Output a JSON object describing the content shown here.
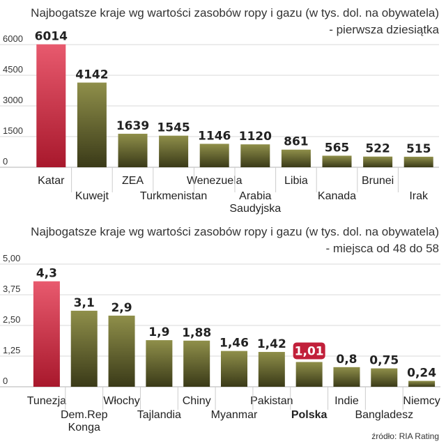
{
  "colors": {
    "bar_top": "#8f8f4a",
    "bar_bottom": "#3a3a18",
    "highlight_top": "#e85a6e",
    "highlight_bottom": "#a8182c",
    "badge": "#c1203a"
  },
  "chart_data": [
    {
      "type": "bar",
      "title": "Najbogatsze kraje wg wartości zasobów ropy i gazu (w tys. dol. na obywatela)",
      "subtitle": "- pierwsza dziesiątka",
      "categories": [
        "Katar",
        "Kuwejt",
        "ZEA",
        "Turkmenistan",
        "Wenezuela",
        "Arabia Saudyjska",
        "Libia",
        "Kanada",
        "Brunei",
        "Irak"
      ],
      "category_lines": [
        [
          "Katar"
        ],
        [
          "Kuwejt"
        ],
        [
          "ZEA"
        ],
        [
          "Turkmenistan"
        ],
        [
          "Wenezuela"
        ],
        [
          "Arabia",
          "Saudyjska"
        ],
        [
          "Libia"
        ],
        [
          "Kanada"
        ],
        [
          "Brunei"
        ],
        [
          "Irak"
        ]
      ],
      "values": [
        6014,
        4142,
        1639,
        1545,
        1146,
        1120,
        861,
        565,
        522,
        515
      ],
      "value_labels": [
        "6014",
        "4142",
        "1639",
        "1545",
        "1146",
        "1120",
        "861",
        "565",
        "522",
        "515"
      ],
      "highlight_index": 0,
      "highlight_label_badge": false,
      "bold_category_index": -1,
      "ylim": [
        0,
        6000
      ],
      "yticks": [
        0,
        1500,
        3000,
        4500,
        6000
      ],
      "ytick_labels": [
        "0",
        "1500",
        "3000",
        "4500",
        "6000"
      ],
      "xlabel": "",
      "ylabel": ""
    },
    {
      "type": "bar",
      "title": "Najbogatsze kraje wg wartości zasobów ropy i gazu (w tys. dol. na obywatela)",
      "subtitle": "- miejsca od 48 do 58",
      "categories": [
        "Tunezja",
        "Dem.Rep Konga",
        "Włochy",
        "Tajlandia",
        "Chiny",
        "Myanmar",
        "Pakistan",
        "Polska",
        "Indie",
        "Bangladesz",
        "Niemcy"
      ],
      "category_lines": [
        [
          "Tunezja"
        ],
        [
          "Dem.Rep",
          "Konga"
        ],
        [
          "Włochy"
        ],
        [
          "Tajlandia"
        ],
        [
          "Chiny"
        ],
        [
          "Myanmar"
        ],
        [
          "Pakistan"
        ],
        [
          "Polska"
        ],
        [
          "Indie"
        ],
        [
          "Bangladesz"
        ],
        [
          "Niemcy"
        ]
      ],
      "values": [
        4.3,
        3.1,
        2.9,
        1.9,
        1.88,
        1.46,
        1.42,
        1.01,
        0.8,
        0.75,
        0.24
      ],
      "value_labels": [
        "4,3",
        "3,1",
        "2,9",
        "1,9",
        "1,88",
        "1,46",
        "1,42",
        "1,01",
        "0,8",
        "0,75",
        "0,24"
      ],
      "highlight_index": 0,
      "highlight_label_badge": true,
      "badge_index": 7,
      "bold_category_index": 7,
      "ylim": [
        0,
        5
      ],
      "yticks": [
        0,
        1.25,
        2.5,
        3.75,
        5
      ],
      "ytick_labels": [
        "0",
        "1,25",
        "2,50",
        "3,75",
        "5,00"
      ],
      "xlabel": "",
      "ylabel": ""
    }
  ],
  "source": "źródło: RIA Rating"
}
